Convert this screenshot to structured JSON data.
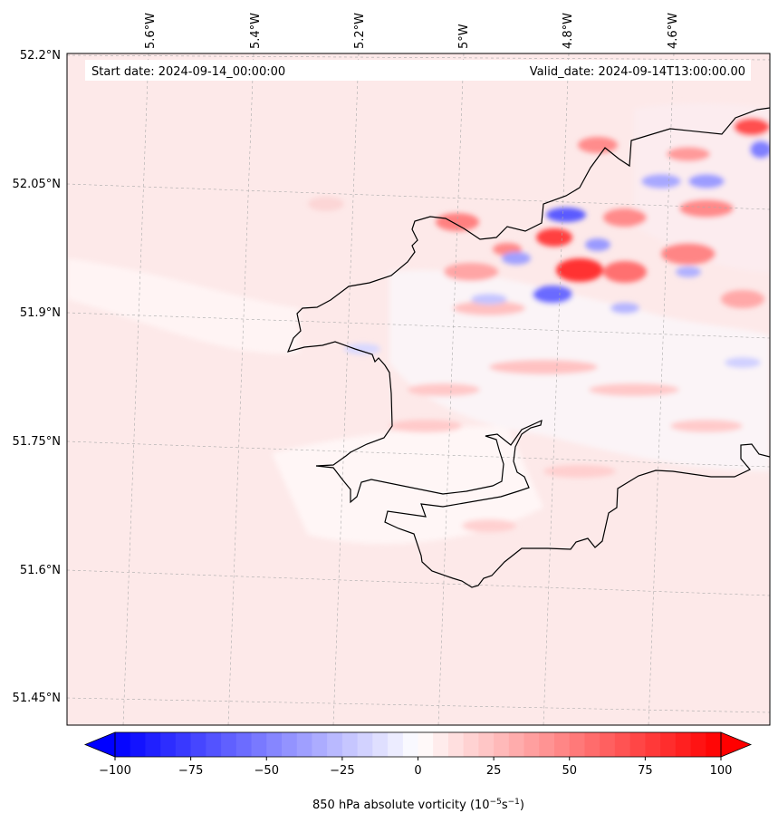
{
  "map": {
    "start_date": "Start date: 2024-09-14_00:00:00",
    "valid_date": "Valid_date: 2024-09-14T13:00:00.00",
    "lon_labels": [
      "5.6°W",
      "5.4°W",
      "5.2°W",
      "5°W",
      "4.8°W",
      "4.6°W"
    ],
    "lat_labels": [
      "52.2°N",
      "52.05°N",
      "51.9°N",
      "51.75°N",
      "51.6°N",
      "51.45°N"
    ],
    "background_color": "#fde9e9",
    "coastline_color": "#000000"
  },
  "colorbar": {
    "title": "850 hPa absolute vorticity (10",
    "title_exp1": "−5",
    "title_mid": "s",
    "title_exp2": "−1",
    "title_end": ")",
    "min": -100,
    "max": 100,
    "step": 5,
    "ticks": [
      "−100",
      "−75",
      "−50",
      "−25",
      "0",
      "25",
      "50",
      "75",
      "100"
    ],
    "neg_color": "#0000ff",
    "mid_color": "#ffffff",
    "pos_color": "#ff0000"
  }
}
